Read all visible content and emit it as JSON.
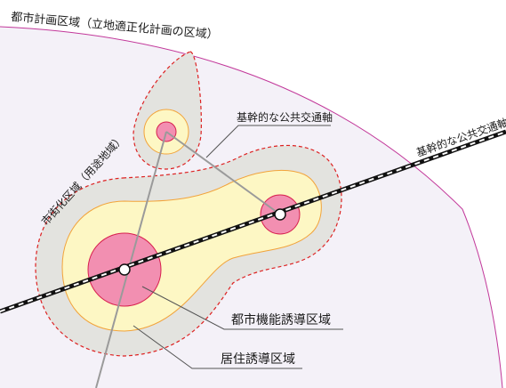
{
  "labels": {
    "city_planning_area": "都市計画区域（立地適正化計画の区域）",
    "urbanization_area": "市街化区域（用途地域）",
    "transit_axis_label": "基幹的な公共交通軸",
    "railway_label": "基幹的な公共交通軸",
    "urban_function_area": "都市機能誘導区域",
    "residential_area": "居住誘導区域"
  },
  "colors": {
    "city_area_fill": "#f4f1f8",
    "city_area_border": "#c2389a",
    "urbanization_fill": "#e3e3df",
    "urbanization_border": "#dd2222",
    "residential_fill": "#fdf7c4",
    "residential_border": "#f2a33a",
    "urban_function_fill": "#f28fb1",
    "urban_function_border": "#d8204f",
    "transit_line": "#9a9a9a",
    "railway": "#111111",
    "leader_line": "#555555"
  }
}
